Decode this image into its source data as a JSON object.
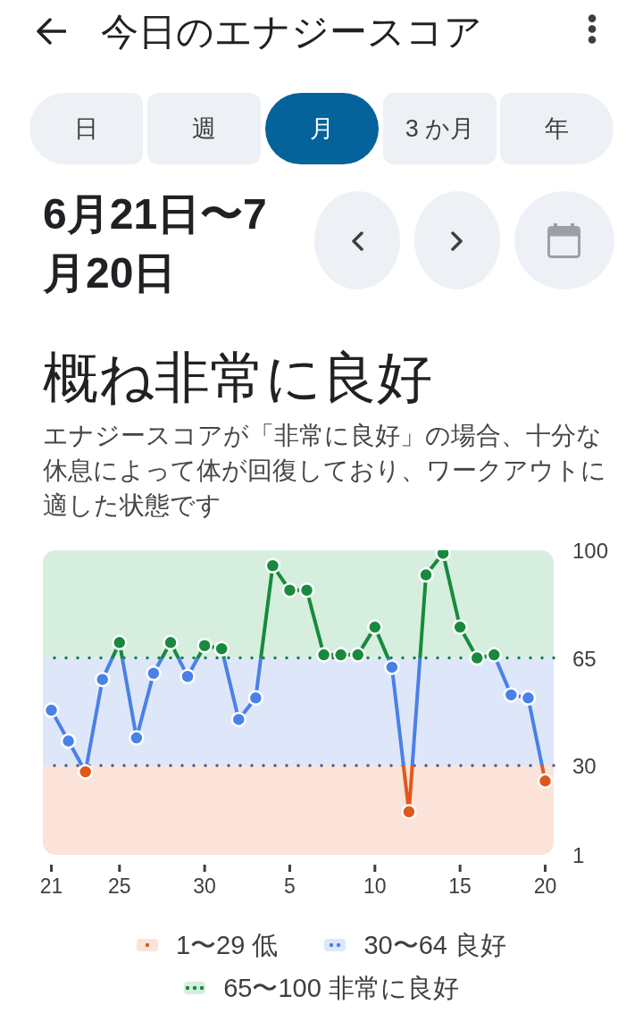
{
  "chart_data": {
    "type": "line",
    "title": "今日のエナジースコア",
    "subtitle": "6月21日〜7月20日",
    "annotations": [
      "日",
      "週",
      "月",
      "3 か月",
      "年",
      "概ね非常に良好",
      "エナジースコアが「非常に良好」の場合、十分な休息によって体が回復しており、ワークアウトに適した状態です"
    ],
    "categories": [
      "21",
      null,
      null,
      null,
      "25",
      null,
      null,
      null,
      null,
      "30",
      null,
      null,
      null,
      null,
      "5",
      null,
      null,
      null,
      null,
      "10",
      null,
      null,
      null,
      null,
      "15",
      null,
      null,
      null,
      null,
      "20"
    ],
    "values": [
      48,
      38,
      28,
      58,
      70,
      39,
      60,
      70,
      59,
      69,
      68,
      45,
      52,
      95,
      87,
      87,
      66,
      66,
      66,
      75,
      62,
      15,
      92,
      99,
      75,
      65,
      66,
      53,
      52,
      25
    ],
    "colors": [
      "#4a80e8",
      "#4a80e8",
      "#e2581c",
      "#4a80e8",
      "#188a3d",
      "#4a80e8",
      "#4a80e8",
      "#188a3d",
      "#4a80e8",
      "#188a3d",
      "#188a3d",
      "#4a80e8",
      "#4a80e8",
      "#188a3d",
      "#188a3d",
      "#188a3d",
      "#188a3d",
      "#188a3d",
      "#188a3d",
      "#188a3d",
      "#4a80e8",
      "#e2581c",
      "#188a3d",
      "#188a3d",
      "#188a3d",
      "#188a3d",
      "#188a3d",
      "#4a80e8",
      "#4a80e8",
      "#e2581c"
    ],
    "ylim": [
      1,
      100
    ],
    "yticks": [
      1,
      30,
      65,
      100
    ],
    "bands": [
      {
        "axis": "y",
        "from": 1,
        "to": 30,
        "label": "1〜29 低",
        "color": "#fbe3d9"
      },
      {
        "axis": "y",
        "from": 30,
        "to": 65,
        "label": "30〜64 良好",
        "color": "#dee7fa"
      },
      {
        "axis": "y",
        "from": 65,
        "to": 100,
        "label": "65〜100 非常に良好",
        "color": "#d6eede"
      }
    ],
    "ref_lines": [
      {
        "axis": "y",
        "value": 30,
        "color": "#4b5d86",
        "line_style": "dotted"
      },
      {
        "axis": "y",
        "value": 65,
        "color": "#1b7a57",
        "line_style": "dotted"
      }
    ],
    "legend": "bottom",
    "marker": "circle",
    "line_style": "solid"
  }
}
